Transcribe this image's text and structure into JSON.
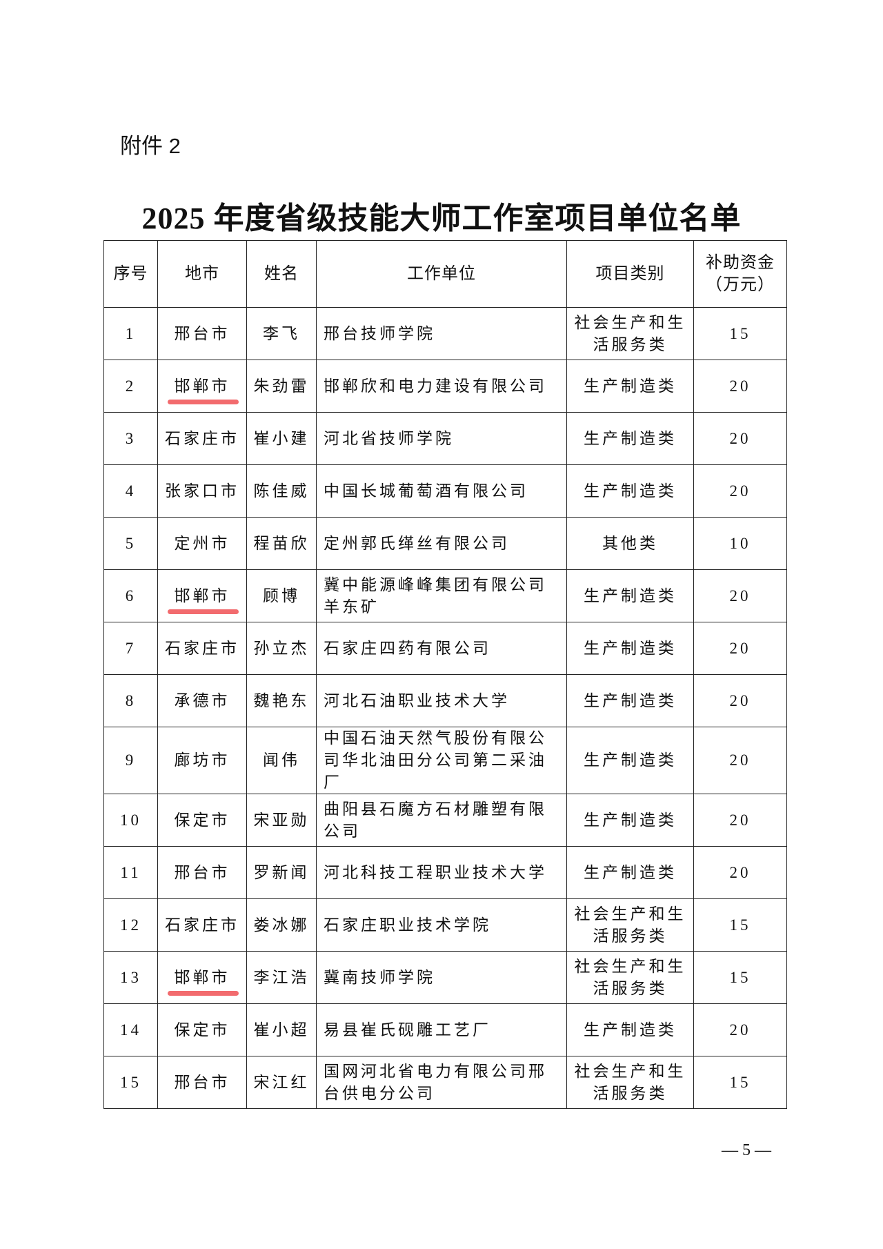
{
  "attachment_label": "附件 2",
  "title": "2025 年度省级技能大师工作室项目单位名单",
  "highlight_color": "#f26b6e",
  "headers": [
    "序号",
    "地市",
    "姓名",
    "工作单位",
    "项目类别",
    "补助资金（万元）"
  ],
  "rows": [
    {
      "no": "1",
      "city": "邢台市",
      "name": "李飞",
      "unit": "邢台技师学院",
      "category": "社会生产和生活服务类",
      "fund": "15",
      "highlight": false
    },
    {
      "no": "2",
      "city": "邯郸市",
      "name": "朱劲雷",
      "unit": "邯郸欣和电力建设有限公司",
      "category": "生产制造类",
      "fund": "20",
      "highlight": true
    },
    {
      "no": "3",
      "city": "石家庄市",
      "name": "崔小建",
      "unit": "河北省技师学院",
      "category": "生产制造类",
      "fund": "20",
      "highlight": false
    },
    {
      "no": "4",
      "city": "张家口市",
      "name": "陈佳威",
      "unit": "中国长城葡萄酒有限公司",
      "category": "生产制造类",
      "fund": "20",
      "highlight": false
    },
    {
      "no": "5",
      "city": "定州市",
      "name": "程苗欣",
      "unit": "定州郭氏缂丝有限公司",
      "category": "其他类",
      "fund": "10",
      "highlight": false
    },
    {
      "no": "6",
      "city": "邯郸市",
      "name": "顾博",
      "unit": "冀中能源峰峰集团有限公司羊东矿",
      "category": "生产制造类",
      "fund": "20",
      "highlight": true
    },
    {
      "no": "7",
      "city": "石家庄市",
      "name": "孙立杰",
      "unit": "石家庄四药有限公司",
      "category": "生产制造类",
      "fund": "20",
      "highlight": false
    },
    {
      "no": "8",
      "city": "承德市",
      "name": "魏艳东",
      "unit": "河北石油职业技术大学",
      "category": "生产制造类",
      "fund": "20",
      "highlight": false
    },
    {
      "no": "9",
      "city": "廊坊市",
      "name": "闻伟",
      "unit": "中国石油天然气股份有限公司华北油田分公司第二采油厂",
      "category": "生产制造类",
      "fund": "20",
      "highlight": false
    },
    {
      "no": "10",
      "city": "保定市",
      "name": "宋亚勋",
      "unit": "曲阳县石魔方石材雕塑有限公司",
      "category": "生产制造类",
      "fund": "20",
      "highlight": false
    },
    {
      "no": "11",
      "city": "邢台市",
      "name": "罗新闻",
      "unit": "河北科技工程职业技术大学",
      "category": "生产制造类",
      "fund": "20",
      "highlight": false
    },
    {
      "no": "12",
      "city": "石家庄市",
      "name": "娄冰娜",
      "unit": "石家庄职业技术学院",
      "category": "社会生产和生活服务类",
      "fund": "15",
      "highlight": false
    },
    {
      "no": "13",
      "city": "邯郸市",
      "name": "李江浩",
      "unit": "冀南技师学院",
      "category": "社会生产和生活服务类",
      "fund": "15",
      "highlight": true
    },
    {
      "no": "14",
      "city": "保定市",
      "name": "崔小超",
      "unit": "易县崔氏砚雕工艺厂",
      "category": "生产制造类",
      "fund": "20",
      "highlight": false
    },
    {
      "no": "15",
      "city": "邢台市",
      "name": "宋江红",
      "unit": "国网河北省电力有限公司邢台供电分公司",
      "category": "社会生产和生活服务类",
      "fund": "15",
      "highlight": false
    }
  ],
  "page_number": "— 5 —"
}
